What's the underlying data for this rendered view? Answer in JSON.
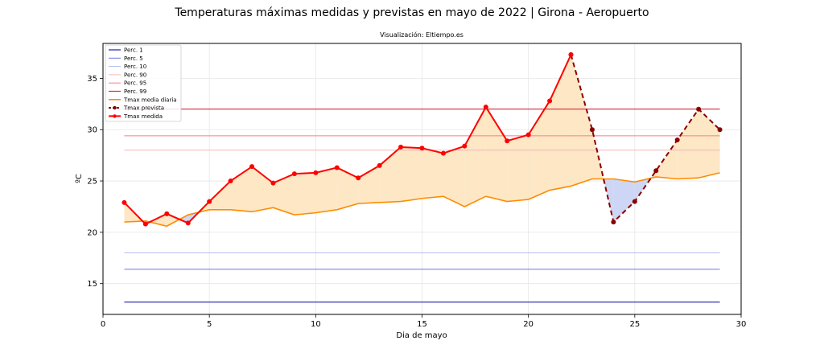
{
  "chart_data": {
    "type": "line",
    "title": "Temperaturas máximas medidas y previstas en mayo de 2022 | Girona - Aeropuerto",
    "subtitle": "Visualización: Eltiempo.es",
    "xlabel": "Dia de mayo",
    "ylabel": "ºC",
    "xlim": [
      0,
      30
    ],
    "ylim": [
      12,
      38.4
    ],
    "xticks": [
      0,
      5,
      10,
      15,
      20,
      25,
      30
    ],
    "yticks": [
      15,
      20,
      25,
      30,
      35
    ],
    "grid": true,
    "legend_position": "top-left",
    "percentiles": [
      {
        "name": "Perc. 1",
        "value": 13.2,
        "color": "#1f1fa8",
        "width": 1.2
      },
      {
        "name": "Perc. 5",
        "value": 16.4,
        "color": "#6b78e6",
        "width": 1.0
      },
      {
        "name": "Perc. 10",
        "value": 18.0,
        "color": "#b3b8ee",
        "width": 1.0
      },
      {
        "name": "Perc. 90",
        "value": 28.0,
        "color": "#f4b7bd",
        "width": 1.0
      },
      {
        "name": "Perc. 95",
        "value": 29.4,
        "color": "#ef7f8c",
        "width": 1.0
      },
      {
        "name": "Perc. 99",
        "value": 32.0,
        "color": "#d42a3c",
        "width": 1.2
      }
    ],
    "mean_series": {
      "name": "Tmax media diaria",
      "color": "#ff8c00",
      "x": [
        1,
        2,
        3,
        4,
        5,
        6,
        7,
        8,
        9,
        10,
        11,
        12,
        13,
        14,
        15,
        16,
        17,
        18,
        19,
        20,
        21,
        22,
        23,
        24,
        25,
        26,
        27,
        28,
        29
      ],
      "values": [
        21.0,
        21.1,
        20.6,
        21.7,
        22.2,
        22.2,
        22.0,
        22.4,
        21.7,
        21.9,
        22.2,
        22.8,
        22.9,
        23.0,
        23.3,
        23.5,
        22.5,
        23.5,
        23.0,
        23.2,
        24.1,
        24.5,
        25.2,
        25.2,
        24.9,
        25.4,
        25.2,
        25.3,
        25.8
      ]
    },
    "measured_series": {
      "name": "Tmax medida",
      "color": "#ff0000",
      "x": [
        1,
        2,
        3,
        4,
        5,
        6,
        7,
        8,
        9,
        10,
        11,
        12,
        13,
        14,
        15,
        16,
        17,
        18,
        19,
        20,
        21,
        22
      ],
      "values": [
        22.9,
        20.8,
        21.8,
        20.9,
        23.0,
        25.0,
        26.4,
        24.8,
        25.7,
        25.8,
        26.3,
        25.3,
        26.5,
        28.3,
        28.2,
        27.7,
        28.4,
        32.2,
        28.9,
        29.5,
        32.8,
        37.3
      ]
    },
    "forecast_series": {
      "name": "Tmax prevista",
      "color": "#8b0000",
      "x": [
        22,
        23,
        24,
        25,
        26,
        27,
        28,
        29
      ],
      "values": [
        37.3,
        30.0,
        21.0,
        23.0,
        26.0,
        29.0,
        32.0,
        30.0
      ]
    },
    "fill_above_color": "#fde7c4",
    "fill_below_color": "#cdd6f4"
  }
}
